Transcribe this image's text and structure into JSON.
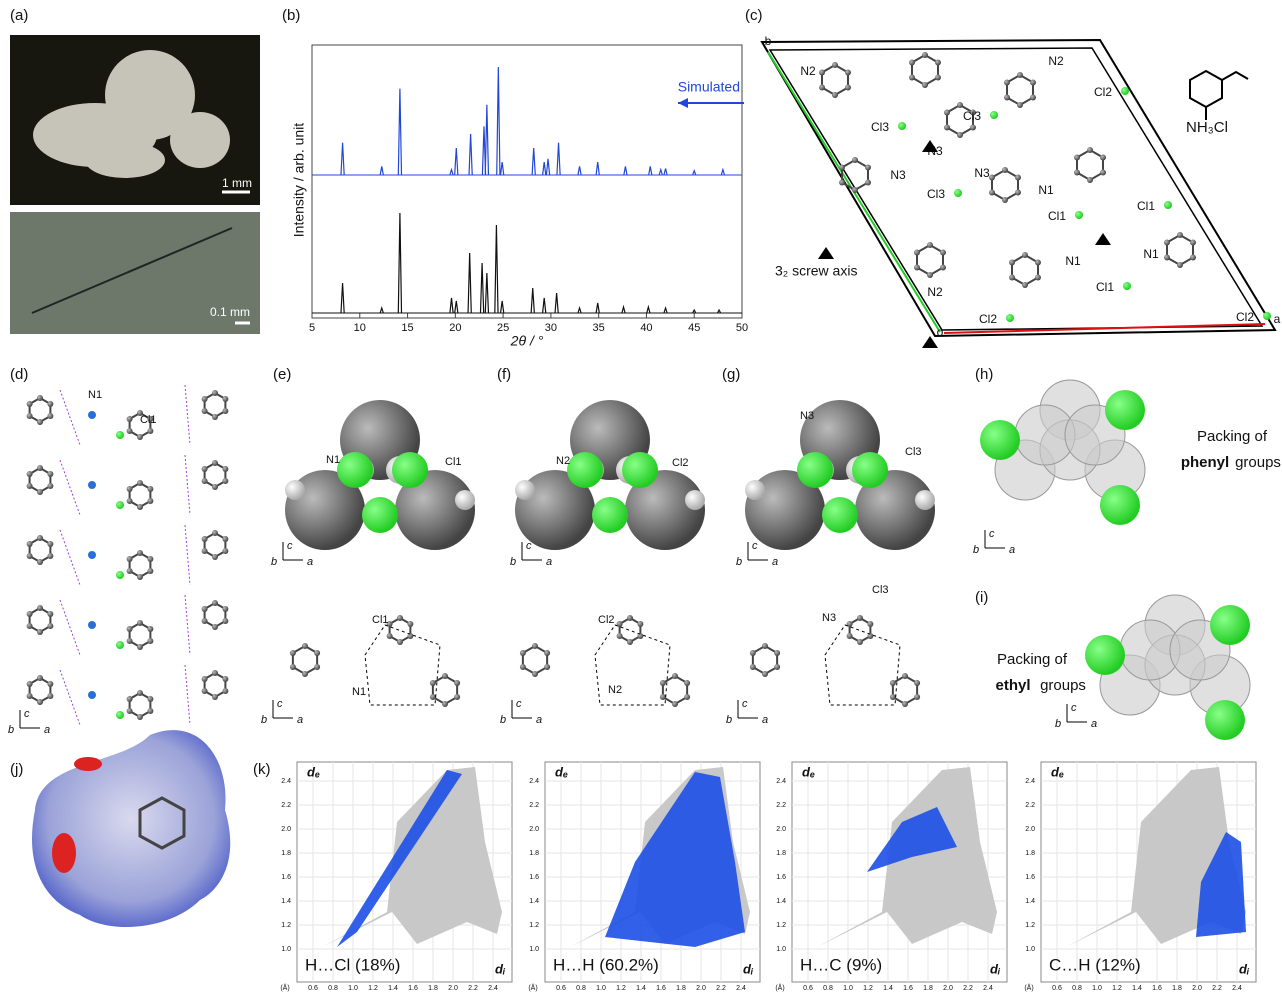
{
  "panels": {
    "a": {
      "label": "(a)",
      "scale_top": "1 mm",
      "scale_bottom": "0.1 mm"
    },
    "b": {
      "label": "(b)",
      "ylabel": "Intensity / arb. unit",
      "xlabel": "2θ / °",
      "legend": "Simulated",
      "xlim": [
        5,
        50
      ],
      "xticks": [
        5,
        10,
        15,
        20,
        25,
        30,
        35,
        40,
        45,
        50
      ],
      "simulated": {
        "color": "#2147d9",
        "x": [
          8.2,
          12.3,
          14.2,
          19.6,
          20.1,
          21.6,
          23.0,
          23.3,
          24.5,
          24.9,
          28.2,
          29.3,
          29.7,
          30.8,
          33.0,
          34.9,
          37.8,
          40.4,
          41.5,
          42.0,
          45.0,
          48.0
        ],
        "intensity": [
          30,
          8,
          80,
          5,
          25,
          38,
          45,
          65,
          100,
          12,
          25,
          12,
          15,
          30,
          8,
          12,
          8,
          8,
          5,
          6,
          4,
          5
        ]
      },
      "experimental": {
        "color": "#111111",
        "x": [
          8.2,
          12.3,
          14.2,
          19.6,
          20.1,
          21.5,
          22.8,
          23.3,
          24.3,
          24.9,
          28.1,
          29.3,
          30.6,
          33.0,
          34.9,
          37.6,
          40.2,
          42.0,
          45.0,
          47.6
        ],
        "intensity": [
          30,
          5,
          100,
          15,
          12,
          60,
          50,
          40,
          88,
          12,
          25,
          15,
          20,
          5,
          10,
          6,
          6,
          5,
          3,
          3
        ]
      }
    },
    "c": {
      "label": "(c)",
      "atoms": [
        "b",
        "N2",
        "N3",
        "Cl3",
        "Cl3",
        "N2",
        "Cl2",
        "N3",
        "N3",
        "Cl3",
        "N1",
        "Cl1",
        "Cl1",
        "N1",
        "N1",
        "Cl1",
        "N2",
        "Cl2",
        "Cl2",
        "o",
        "a"
      ],
      "formula": "NH₃Cl",
      "screw_axis": "3₂ screw axis"
    },
    "d": {
      "label": "(d)",
      "atoms": [
        "N1",
        "Cl1"
      ],
      "axes": [
        "b",
        "c",
        "a"
      ]
    },
    "e": {
      "label": "(e)",
      "top_atoms": [
        "N1",
        "Cl1"
      ],
      "bottom_atoms": [
        "Cl1",
        "N1"
      ],
      "top_axes": [
        "b",
        "c",
        "a"
      ],
      "bottom_axes": [
        "b",
        "c",
        "a"
      ]
    },
    "f": {
      "label": "(f)",
      "top_atoms": [
        "N2",
        "Cl2"
      ],
      "bottom_atoms": [
        "Cl2",
        "N2"
      ],
      "top_axes": [
        "b",
        "c",
        "a"
      ],
      "bottom_axes": [
        "b",
        "c",
        "a"
      ]
    },
    "g": {
      "label": "(g)",
      "top_atoms": [
        "N3",
        "Cl3"
      ],
      "bottom_atoms": [
        "N3",
        "Cl3"
      ],
      "top_axes": [
        "b",
        "c",
        "a"
      ],
      "bottom_axes": [
        "b",
        "c",
        "a"
      ]
    },
    "h": {
      "label": "(h)",
      "text": "Packing of",
      "bold": "phenyl",
      "rest": "groups",
      "axes": [
        "b",
        "c",
        "a"
      ]
    },
    "i": {
      "label": "(i)",
      "text": "Packing of",
      "bold": "ethyl",
      "rest": "groups",
      "axes": [
        "b",
        "c",
        "a"
      ]
    },
    "j": {
      "label": "(j)"
    },
    "k": {
      "label": "(k)",
      "plots": [
        {
          "title": "H…Cl (18%)",
          "de": "dₑ",
          "di": "dᵢ",
          "unit": "(Å)",
          "xticks": [
            "0.6",
            "0.8",
            "1.0",
            "1.2",
            "1.4",
            "1.6",
            "1.8",
            "2.0",
            "2.2",
            "2.4"
          ],
          "yticks": [
            "2.4",
            "2.2",
            "2.0",
            "1.8",
            "1.6",
            "1.4",
            "1.2",
            "1.0"
          ]
        },
        {
          "title": "H…H (60.2%)",
          "de": "dₑ",
          "di": "dᵢ",
          "unit": "(Å)",
          "xticks": [
            "0.6",
            "0.8",
            "1.0",
            "1.2",
            "1.4",
            "1.6",
            "1.8",
            "2.0",
            "2.2",
            "2.4"
          ],
          "yticks": [
            "2.4",
            "2.2",
            "2.0",
            "1.8",
            "1.6",
            "1.4",
            "1.2",
            "1.0"
          ]
        },
        {
          "title": "H…C (9%)",
          "de": "dₑ",
          "di": "dᵢ",
          "unit": "(Å)",
          "xticks": [
            "0.6",
            "0.8",
            "1.0",
            "1.2",
            "1.4",
            "1.6",
            "1.8",
            "2.0",
            "2.2",
            "2.4"
          ],
          "yticks": [
            "2.4",
            "2.2",
            "2.0",
            "1.8",
            "1.6",
            "1.4",
            "1.2",
            "1.0"
          ]
        },
        {
          "title": "C…H (12%)",
          "de": "dₑ",
          "di": "dᵢ",
          "unit": "(Å)",
          "xticks": [
            "0.6",
            "0.8",
            "1.0",
            "1.2",
            "1.4",
            "1.6",
            "1.8",
            "2.0",
            "2.2",
            "2.4"
          ],
          "yticks": [
            "2.4",
            "2.2",
            "2.0",
            "1.8",
            "1.6",
            "1.4",
            "1.2",
            "1.0"
          ]
        }
      ]
    }
  }
}
